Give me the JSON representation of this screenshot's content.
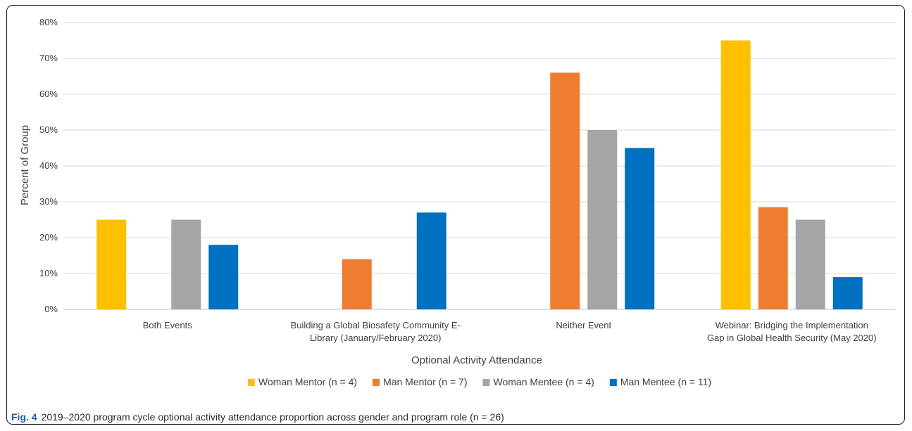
{
  "caption": {
    "label": "Fig. 4",
    "text": "2019–2020 program cycle optional activity attendance proportion across gender and program role (n = 26)"
  },
  "chart_data": {
    "type": "bar",
    "title": "",
    "xlabel": "Optional Activity Attendance",
    "ylabel": "Percent of Group",
    "ylim": [
      0,
      80
    ],
    "yticks": [
      "0%",
      "10%",
      "20%",
      "30%",
      "40%",
      "50%",
      "60%",
      "70%",
      "80%"
    ],
    "grid": true,
    "legend_position": "bottom",
    "categories": [
      [
        "Both Events"
      ],
      [
        "Building a Global Biosafety Community E-",
        "Library (January/February 2020)"
      ],
      [
        "Neither Event"
      ],
      [
        "Webinar: Bridging the Implementation",
        "Gap in Global Health Security (May 2020)"
      ]
    ],
    "series": [
      {
        "name": "Woman Mentor (n = 4)",
        "color": "#FFC000",
        "values": [
          25,
          0,
          0,
          75
        ]
      },
      {
        "name": "Man Mentor (n = 7)",
        "color": "#ED7D31",
        "values": [
          0,
          14,
          66,
          28.5
        ]
      },
      {
        "name": "Woman Mentee (n = 4)",
        "color": "#A5A5A5",
        "values": [
          25,
          0,
          50,
          25
        ]
      },
      {
        "name": "Man Mentee (n = 11)",
        "color": "#0070C0",
        "values": [
          18,
          27,
          45,
          9
        ]
      }
    ]
  }
}
